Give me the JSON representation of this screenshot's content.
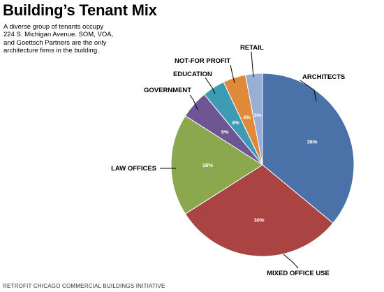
{
  "header": {
    "title": "Building’s Tenant Mix",
    "description_lines": [
      "A diverse group of tenants occupy",
      "224 S. Michigan Avenue.  SOM, VOA,",
      "and Goettsch Partners are the only",
      "architecture firms in the building."
    ]
  },
  "footer": {
    "text": "RETROFIT CHICAGO COMMERCIAL BUILDINGS INITIATIVE"
  },
  "chart_data": {
    "type": "pie",
    "title": "",
    "slices": [
      {
        "label": "ARCHITECTS",
        "value": 36,
        "value_label": "36%",
        "color": "#4A72A8"
      },
      {
        "label": "MIXED OFFICE USE",
        "value": 30,
        "value_label": "30%",
        "color": "#A94442"
      },
      {
        "label": "LAW OFFICES",
        "value": 18,
        "value_label": "18%",
        "color": "#8BA84F"
      },
      {
        "label": "GOVERNMENT",
        "value": 5,
        "value_label": "5%",
        "color": "#6E5594"
      },
      {
        "label": "EDUCATION",
        "value": 4,
        "value_label": "4%",
        "color": "#3E9BB4"
      },
      {
        "label": "NOT-FOR PROFIT",
        "value": 4,
        "value_label": "4%",
        "color": "#E0893B"
      },
      {
        "label": "RETAIL",
        "value": 3,
        "value_label": "3%",
        "color": "#98AED5"
      }
    ],
    "start": "12 o'clock",
    "direction": "clockwise",
    "legend": "none (callout labels)"
  }
}
